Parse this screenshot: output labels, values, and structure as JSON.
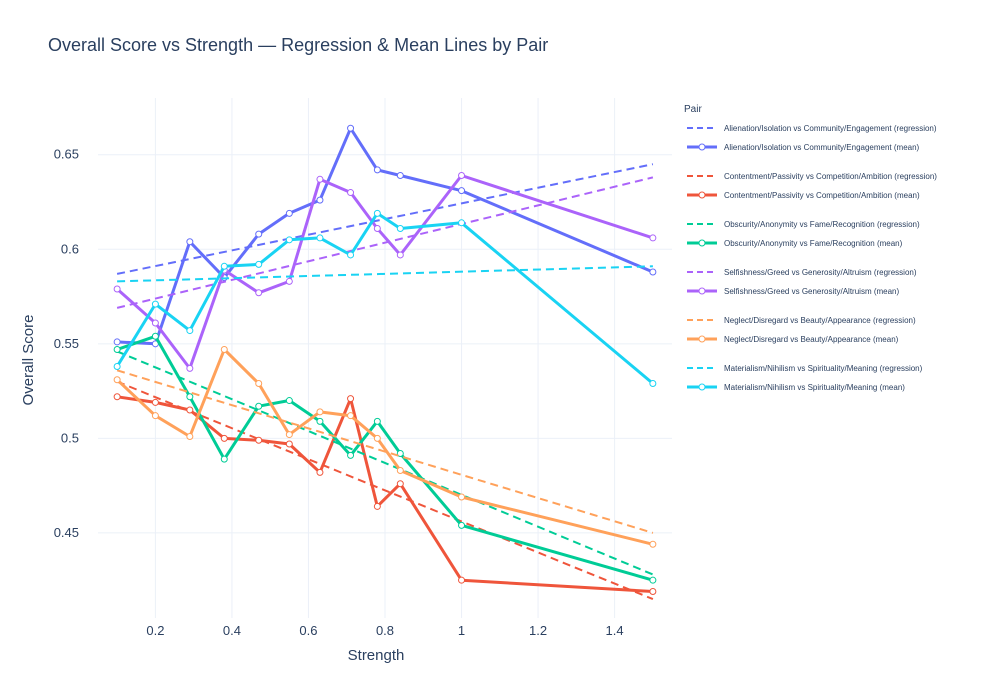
{
  "chart_data": {
    "type": "line",
    "title": "Overall Score vs Strength — Regression & Mean Lines by Pair",
    "xlabel": "Strength",
    "ylabel": "Overall Score",
    "xlim": [
      0.05,
      1.55
    ],
    "ylim": [
      0.405,
      0.68
    ],
    "xticks": [
      0.2,
      0.4,
      0.6,
      0.8,
      1,
      1.2,
      1.4
    ],
    "xtick_labels": [
      "0.2",
      "0.4",
      "0.6",
      "0.8",
      "1",
      "1.2",
      "1.4"
    ],
    "yticks": [
      0.45,
      0.5,
      0.55,
      0.6,
      0.65
    ],
    "ytick_labels": [
      "0.45",
      "0.5",
      "0.55",
      "0.6",
      "0.65"
    ],
    "grid": true,
    "legend": {
      "title": "Pair",
      "placement": "right"
    },
    "x": [
      0.1,
      0.2,
      0.29,
      0.38,
      0.47,
      0.55,
      0.63,
      0.71,
      0.78,
      0.84,
      1.0,
      1.5
    ],
    "series": [
      {
        "name": "Alienation/Isolation vs Community/Engagement (regression)",
        "kind": "regression",
        "color": "#636efa",
        "x": [
          0.1,
          1.5
        ],
        "values": [
          0.587,
          0.645
        ]
      },
      {
        "name": "Alienation/Isolation vs Community/Engagement (mean)",
        "kind": "mean",
        "color": "#636efa",
        "values": [
          0.551,
          0.55,
          0.604,
          0.585,
          0.608,
          0.619,
          0.626,
          0.664,
          0.642,
          0.639,
          0.631,
          0.588
        ]
      },
      {
        "name": "Contentment/Passivity vs Competition/Ambition (regression)",
        "kind": "regression",
        "color": "#ef553b",
        "x": [
          0.1,
          1.5
        ],
        "values": [
          0.53,
          0.415
        ]
      },
      {
        "name": "Contentment/Passivity vs Competition/Ambition (mean)",
        "kind": "mean",
        "color": "#ef553b",
        "values": [
          0.522,
          0.519,
          0.515,
          0.5,
          0.499,
          0.497,
          0.482,
          0.521,
          0.464,
          0.476,
          0.425,
          0.419
        ]
      },
      {
        "name": "Obscurity/Anonymity vs Fame/Recognition (regression)",
        "kind": "regression",
        "color": "#00cc96",
        "x": [
          0.1,
          1.5
        ],
        "values": [
          0.546,
          0.428
        ]
      },
      {
        "name": "Obscurity/Anonymity vs Fame/Recognition (mean)",
        "kind": "mean",
        "color": "#00cc96",
        "values": [
          0.547,
          0.554,
          0.522,
          0.489,
          0.517,
          0.52,
          0.509,
          0.491,
          0.509,
          0.492,
          0.454,
          0.425
        ]
      },
      {
        "name": "Selfishness/Greed vs Generosity/Altruism (regression)",
        "kind": "regression",
        "color": "#ab63fa",
        "x": [
          0.1,
          1.5
        ],
        "values": [
          0.569,
          0.638
        ]
      },
      {
        "name": "Selfishness/Greed vs Generosity/Altruism (mean)",
        "kind": "mean",
        "color": "#ab63fa",
        "values": [
          0.579,
          0.561,
          0.537,
          0.589,
          0.577,
          0.583,
          0.637,
          0.63,
          0.611,
          0.597,
          0.639,
          0.606
        ]
      },
      {
        "name": "Neglect/Disregard vs Beauty/Appearance (regression)",
        "kind": "regression",
        "color": "#ffa15a",
        "x": [
          0.1,
          1.5
        ],
        "values": [
          0.536,
          0.45
        ]
      },
      {
        "name": "Neglect/Disregard vs Beauty/Appearance (mean)",
        "kind": "mean",
        "color": "#ffa15a",
        "values": [
          0.531,
          0.512,
          0.501,
          0.547,
          0.529,
          0.502,
          0.514,
          0.512,
          0.5,
          0.483,
          0.469,
          0.444
        ]
      },
      {
        "name": "Materialism/Nihilism vs Spirituality/Meaning (regression)",
        "kind": "regression",
        "color": "#19d3f3",
        "x": [
          0.1,
          1.5
        ],
        "values": [
          0.583,
          0.591
        ]
      },
      {
        "name": "Materialism/Nihilism vs Spirituality/Meaning (mean)",
        "kind": "mean",
        "color": "#19d3f3",
        "values": [
          0.538,
          0.571,
          0.557,
          0.591,
          0.592,
          0.605,
          0.606,
          0.597,
          0.619,
          0.611,
          0.614,
          0.529
        ]
      }
    ]
  }
}
